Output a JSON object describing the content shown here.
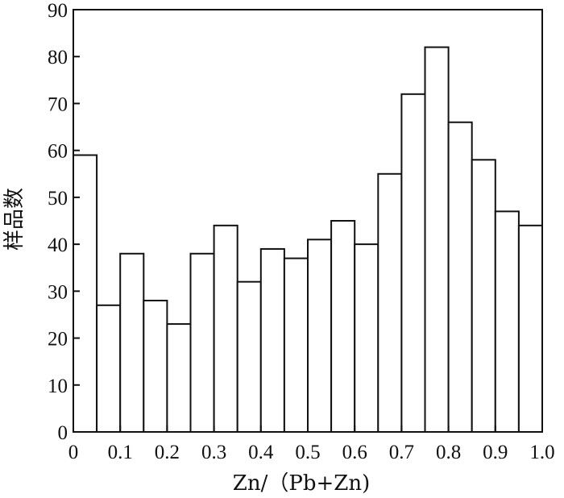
{
  "chart_data": {
    "type": "bar",
    "title": "",
    "xlabel": "Zn/（Pb+Zn)",
    "ylabel": "样品数",
    "x_ticks": [
      "0",
      "0.1",
      "0.2",
      "0.3",
      "0.4",
      "0.5",
      "0.6",
      "0.7",
      "0.8",
      "0.9",
      "1.0"
    ],
    "y_ticks": [
      "0",
      "10",
      "20",
      "30",
      "40",
      "50",
      "60",
      "70",
      "80",
      "90"
    ],
    "xlim": [
      0,
      1.0
    ],
    "ylim": [
      0,
      90
    ],
    "bin_width": 0.05,
    "bin_starts": [
      0,
      0.05,
      0.1,
      0.15,
      0.2,
      0.25,
      0.3,
      0.35,
      0.4,
      0.45,
      0.5,
      0.55,
      0.6,
      0.65,
      0.7,
      0.75,
      0.8,
      0.85,
      0.9,
      0.95
    ],
    "values": [
      59,
      27,
      38,
      28,
      23,
      38,
      44,
      32,
      39,
      37,
      41,
      45,
      40,
      55,
      72,
      82,
      66,
      58,
      47,
      44
    ],
    "grid": false,
    "legend": "none"
  }
}
